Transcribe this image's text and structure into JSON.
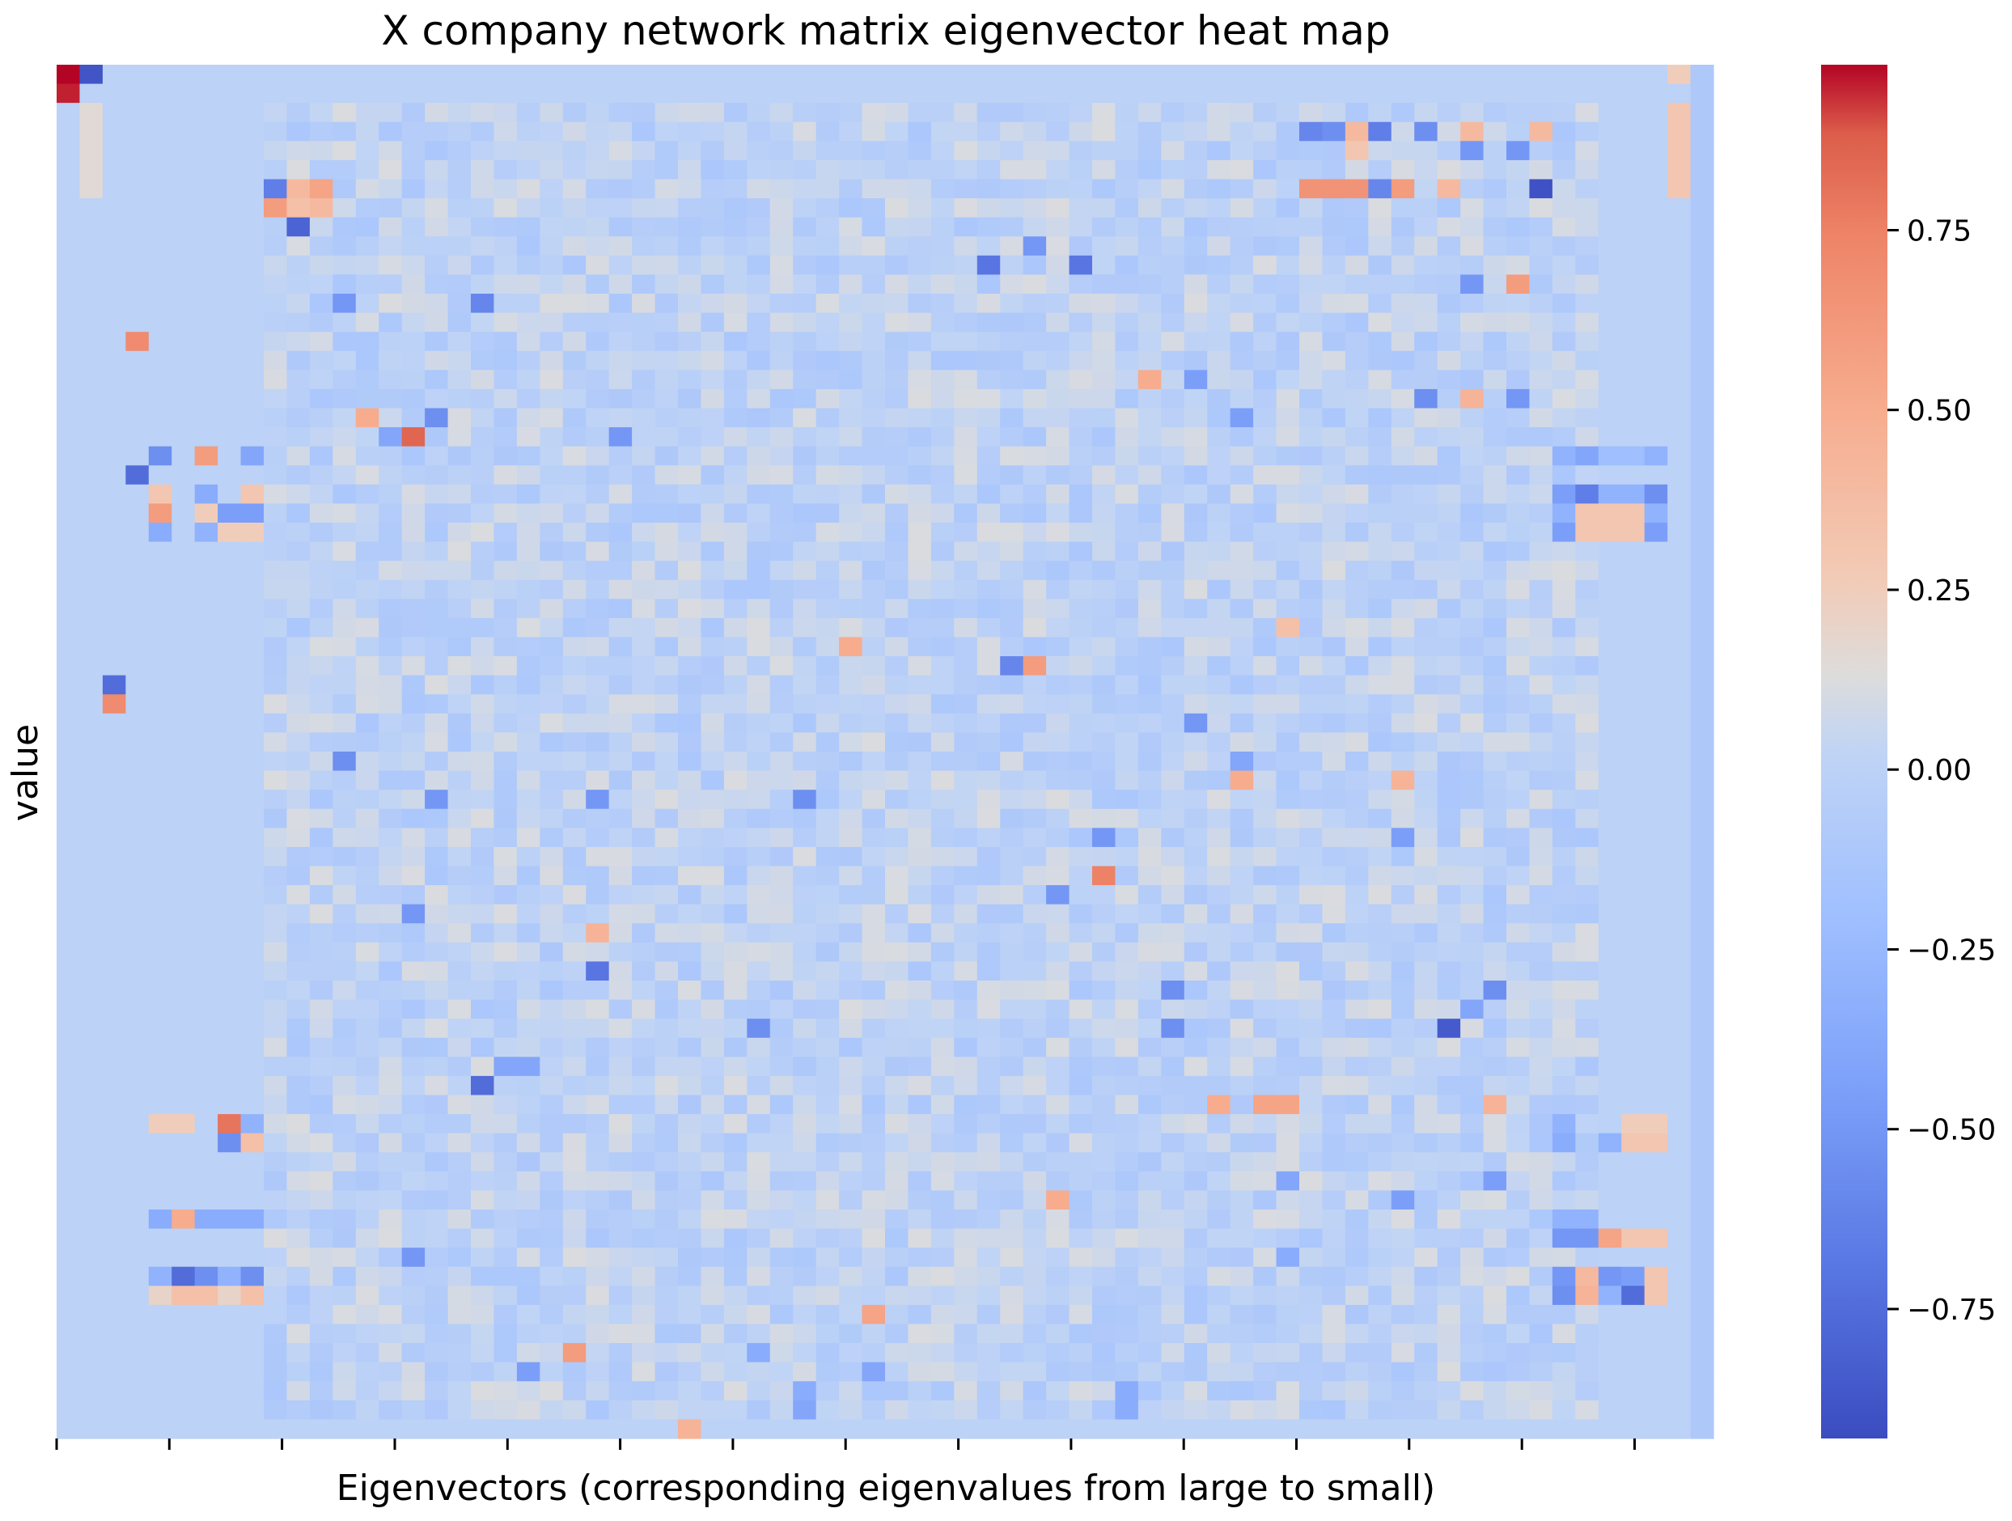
{
  "chart_data": {
    "type": "heatmap",
    "title": "X company network matrix eigenvector heat map",
    "xlabel": "Eigenvectors (corresponding eigenvalues from large to small)",
    "ylabel": "value",
    "n_rows": 72,
    "n_cols": 72,
    "colormap": "coolwarm",
    "vmin": -0.93,
    "vmax": 0.98,
    "background_value": 0.0,
    "colorbar_ticks": [
      0.75,
      0.5,
      0.25,
      0.0,
      -0.25,
      -0.5,
      -0.75
    ],
    "colorbar_tick_labels": [
      "0.75",
      "0.50",
      "0.25",
      "0.00",
      "−0.25",
      "−0.50",
      "−0.75"
    ],
    "x_tick_count": 15,
    "x_tick_labels_visible": false,
    "y_tick_labels_visible": false,
    "noise_region": {
      "rows": [
        2,
        70
      ],
      "cols": [
        9,
        66
      ],
      "amplitude": 0.12
    },
    "cells": [
      {
        "r": 0,
        "c": 0,
        "v": 0.98
      },
      {
        "r": 0,
        "c": 1,
        "v": -0.88
      },
      {
        "r": 1,
        "c": 0,
        "v": 0.95
      },
      {
        "r": 0,
        "c": 70,
        "v": 0.25
      },
      {
        "r": 1,
        "c": 70,
        "v": 0.0
      },
      {
        "r": 2,
        "c": 70,
        "v": 0.3
      },
      {
        "r": 3,
        "c": 70,
        "v": 0.3
      },
      {
        "r": 4,
        "c": 70,
        "v": 0.3
      },
      {
        "r": 5,
        "c": 70,
        "v": 0.3
      },
      {
        "r": 6,
        "c": 70,
        "v": 0.3
      },
      {
        "r": 2,
        "c": 1,
        "v": 0.15
      },
      {
        "r": 3,
        "c": 1,
        "v": 0.15
      },
      {
        "r": 4,
        "c": 1,
        "v": 0.15
      },
      {
        "r": 5,
        "c": 1,
        "v": 0.15
      },
      {
        "r": 6,
        "c": 1,
        "v": 0.15
      },
      {
        "r": 6,
        "c": 9,
        "v": -0.65
      },
      {
        "r": 6,
        "c": 10,
        "v": 0.4
      },
      {
        "r": 6,
        "c": 11,
        "v": 0.55
      },
      {
        "r": 7,
        "c": 9,
        "v": 0.6
      },
      {
        "r": 7,
        "c": 10,
        "v": 0.35
      },
      {
        "r": 7,
        "c": 11,
        "v": 0.4
      },
      {
        "r": 8,
        "c": 10,
        "v": -0.8
      },
      {
        "r": 6,
        "c": 54,
        "v": 0.65
      },
      {
        "r": 6,
        "c": 55,
        "v": 0.65
      },
      {
        "r": 6,
        "c": 56,
        "v": 0.65
      },
      {
        "r": 6,
        "c": 57,
        "v": -0.6
      },
      {
        "r": 6,
        "c": 58,
        "v": 0.6
      },
      {
        "r": 6,
        "c": 60,
        "v": 0.4
      },
      {
        "r": 6,
        "c": 64,
        "v": -0.9
      },
      {
        "r": 3,
        "c": 54,
        "v": -0.6
      },
      {
        "r": 3,
        "c": 55,
        "v": -0.55
      },
      {
        "r": 3,
        "c": 56,
        "v": 0.4
      },
      {
        "r": 3,
        "c": 57,
        "v": -0.65
      },
      {
        "r": 3,
        "c": 59,
        "v": -0.55
      },
      {
        "r": 3,
        "c": 61,
        "v": 0.4
      },
      {
        "r": 3,
        "c": 64,
        "v": 0.4
      },
      {
        "r": 4,
        "c": 56,
        "v": 0.3
      },
      {
        "r": 4,
        "c": 61,
        "v": -0.5
      },
      {
        "r": 4,
        "c": 63,
        "v": -0.5
      },
      {
        "r": 10,
        "c": 40,
        "v": -0.7
      },
      {
        "r": 10,
        "c": 44,
        "v": -0.7
      },
      {
        "r": 9,
        "c": 42,
        "v": -0.5
      },
      {
        "r": 11,
        "c": 61,
        "v": -0.5
      },
      {
        "r": 11,
        "c": 63,
        "v": 0.6
      },
      {
        "r": 12,
        "c": 12,
        "v": -0.5
      },
      {
        "r": 12,
        "c": 18,
        "v": -0.6
      },
      {
        "r": 14,
        "c": 3,
        "v": 0.7
      },
      {
        "r": 16,
        "c": 47,
        "v": 0.5
      },
      {
        "r": 16,
        "c": 49,
        "v": -0.45
      },
      {
        "r": 17,
        "c": 59,
        "v": -0.55
      },
      {
        "r": 17,
        "c": 61,
        "v": 0.45
      },
      {
        "r": 17,
        "c": 63,
        "v": -0.5
      },
      {
        "r": 18,
        "c": 13,
        "v": 0.5
      },
      {
        "r": 18,
        "c": 16,
        "v": -0.55
      },
      {
        "r": 18,
        "c": 51,
        "v": -0.45
      },
      {
        "r": 19,
        "c": 14,
        "v": -0.4
      },
      {
        "r": 19,
        "c": 15,
        "v": 0.85
      },
      {
        "r": 19,
        "c": 24,
        "v": -0.5
      },
      {
        "r": 20,
        "c": 4,
        "v": -0.55
      },
      {
        "r": 20,
        "c": 6,
        "v": 0.6
      },
      {
        "r": 20,
        "c": 8,
        "v": -0.4
      },
      {
        "r": 21,
        "c": 3,
        "v": -0.75
      },
      {
        "r": 22,
        "c": 4,
        "v": 0.3
      },
      {
        "r": 22,
        "c": 6,
        "v": -0.35
      },
      {
        "r": 22,
        "c": 8,
        "v": 0.3
      },
      {
        "r": 23,
        "c": 4,
        "v": 0.6
      },
      {
        "r": 23,
        "c": 6,
        "v": 0.25
      },
      {
        "r": 23,
        "c": 7,
        "v": -0.45
      },
      {
        "r": 23,
        "c": 8,
        "v": -0.45
      },
      {
        "r": 24,
        "c": 4,
        "v": -0.35
      },
      {
        "r": 24,
        "c": 6,
        "v": -0.3
      },
      {
        "r": 24,
        "c": 7,
        "v": 0.25
      },
      {
        "r": 24,
        "c": 8,
        "v": 0.25
      },
      {
        "r": 20,
        "c": 65,
        "v": -0.3
      },
      {
        "r": 20,
        "c": 66,
        "v": -0.4
      },
      {
        "r": 20,
        "c": 67,
        "v": -0.2
      },
      {
        "r": 20,
        "c": 68,
        "v": -0.2
      },
      {
        "r": 20,
        "c": 69,
        "v": -0.3
      },
      {
        "r": 22,
        "c": 65,
        "v": -0.45
      },
      {
        "r": 22,
        "c": 66,
        "v": -0.65
      },
      {
        "r": 22,
        "c": 67,
        "v": -0.3
      },
      {
        "r": 22,
        "c": 68,
        "v": -0.3
      },
      {
        "r": 22,
        "c": 69,
        "v": -0.55
      },
      {
        "r": 23,
        "c": 65,
        "v": -0.3
      },
      {
        "r": 23,
        "c": 66,
        "v": 0.3
      },
      {
        "r": 23,
        "c": 67,
        "v": 0.3
      },
      {
        "r": 23,
        "c": 68,
        "v": 0.3
      },
      {
        "r": 23,
        "c": 69,
        "v": -0.3
      },
      {
        "r": 24,
        "c": 65,
        "v": -0.45
      },
      {
        "r": 24,
        "c": 66,
        "v": 0.3
      },
      {
        "r": 24,
        "c": 67,
        "v": 0.3
      },
      {
        "r": 24,
        "c": 68,
        "v": 0.3
      },
      {
        "r": 24,
        "c": 69,
        "v": -0.45
      },
      {
        "r": 29,
        "c": 53,
        "v": 0.35
      },
      {
        "r": 30,
        "c": 34,
        "v": 0.5
      },
      {
        "r": 31,
        "c": 41,
        "v": -0.6
      },
      {
        "r": 31,
        "c": 42,
        "v": 0.6
      },
      {
        "r": 32,
        "c": 2,
        "v": -0.75
      },
      {
        "r": 33,
        "c": 2,
        "v": 0.7
      },
      {
        "r": 34,
        "c": 49,
        "v": -0.5
      },
      {
        "r": 36,
        "c": 12,
        "v": -0.55
      },
      {
        "r": 36,
        "c": 51,
        "v": -0.4
      },
      {
        "r": 37,
        "c": 51,
        "v": 0.5
      },
      {
        "r": 37,
        "c": 58,
        "v": 0.45
      },
      {
        "r": 38,
        "c": 16,
        "v": -0.5
      },
      {
        "r": 38,
        "c": 23,
        "v": -0.5
      },
      {
        "r": 38,
        "c": 32,
        "v": -0.55
      },
      {
        "r": 40,
        "c": 45,
        "v": -0.5
      },
      {
        "r": 40,
        "c": 58,
        "v": -0.45
      },
      {
        "r": 42,
        "c": 45,
        "v": 0.75
      },
      {
        "r": 43,
        "c": 43,
        "v": -0.5
      },
      {
        "r": 44,
        "c": 15,
        "v": -0.5
      },
      {
        "r": 45,
        "c": 23,
        "v": 0.45
      },
      {
        "r": 47,
        "c": 23,
        "v": -0.7
      },
      {
        "r": 48,
        "c": 48,
        "v": -0.55
      },
      {
        "r": 48,
        "c": 62,
        "v": -0.55
      },
      {
        "r": 49,
        "c": 61,
        "v": -0.4
      },
      {
        "r": 50,
        "c": 30,
        "v": -0.55
      },
      {
        "r": 50,
        "c": 48,
        "v": -0.55
      },
      {
        "r": 50,
        "c": 60,
        "v": -0.85
      },
      {
        "r": 52,
        "c": 19,
        "v": -0.4
      },
      {
        "r": 52,
        "c": 20,
        "v": -0.4
      },
      {
        "r": 53,
        "c": 18,
        "v": -0.75
      },
      {
        "r": 54,
        "c": 50,
        "v": 0.5
      },
      {
        "r": 54,
        "c": 52,
        "v": 0.55
      },
      {
        "r": 54,
        "c": 53,
        "v": 0.55
      },
      {
        "r": 54,
        "c": 62,
        "v": 0.45
      },
      {
        "r": 55,
        "c": 4,
        "v": 0.25
      },
      {
        "r": 55,
        "c": 5,
        "v": 0.25
      },
      {
        "r": 55,
        "c": 7,
        "v": 0.8
      },
      {
        "r": 55,
        "c": 8,
        "v": -0.3
      },
      {
        "r": 56,
        "c": 7,
        "v": -0.55
      },
      {
        "r": 56,
        "c": 8,
        "v": 0.35
      },
      {
        "r": 55,
        "c": 65,
        "v": -0.3
      },
      {
        "r": 55,
        "c": 68,
        "v": 0.25
      },
      {
        "r": 55,
        "c": 69,
        "v": 0.25
      },
      {
        "r": 56,
        "c": 65,
        "v": -0.35
      },
      {
        "r": 56,
        "c": 67,
        "v": -0.3
      },
      {
        "r": 56,
        "c": 68,
        "v": 0.3
      },
      {
        "r": 56,
        "c": 69,
        "v": 0.3
      },
      {
        "r": 58,
        "c": 62,
        "v": -0.45
      },
      {
        "r": 58,
        "c": 53,
        "v": -0.4
      },
      {
        "r": 59,
        "c": 43,
        "v": 0.5
      },
      {
        "r": 59,
        "c": 58,
        "v": -0.45
      },
      {
        "r": 60,
        "c": 4,
        "v": -0.35
      },
      {
        "r": 60,
        "c": 5,
        "v": 0.5
      },
      {
        "r": 60,
        "c": 6,
        "v": -0.35
      },
      {
        "r": 60,
        "c": 7,
        "v": -0.35
      },
      {
        "r": 60,
        "c": 8,
        "v": -0.35
      },
      {
        "r": 61,
        "c": 65,
        "v": -0.5
      },
      {
        "r": 61,
        "c": 66,
        "v": -0.5
      },
      {
        "r": 61,
        "c": 67,
        "v": 0.55
      },
      {
        "r": 61,
        "c": 68,
        "v": 0.3
      },
      {
        "r": 61,
        "c": 69,
        "v": 0.3
      },
      {
        "r": 60,
        "c": 65,
        "v": -0.3
      },
      {
        "r": 60,
        "c": 66,
        "v": -0.3
      },
      {
        "r": 62,
        "c": 15,
        "v": -0.5
      },
      {
        "r": 62,
        "c": 53,
        "v": -0.35
      },
      {
        "r": 63,
        "c": 4,
        "v": -0.3
      },
      {
        "r": 63,
        "c": 5,
        "v": -0.75
      },
      {
        "r": 63,
        "c": 6,
        "v": -0.55
      },
      {
        "r": 63,
        "c": 7,
        "v": -0.3
      },
      {
        "r": 63,
        "c": 8,
        "v": -0.55
      },
      {
        "r": 64,
        "c": 4,
        "v": 0.2
      },
      {
        "r": 64,
        "c": 5,
        "v": 0.35
      },
      {
        "r": 64,
        "c": 6,
        "v": 0.35
      },
      {
        "r": 64,
        "c": 7,
        "v": 0.2
      },
      {
        "r": 64,
        "c": 8,
        "v": 0.35
      },
      {
        "r": 63,
        "c": 65,
        "v": -0.5
      },
      {
        "r": 63,
        "c": 66,
        "v": 0.4
      },
      {
        "r": 63,
        "c": 67,
        "v": -0.5
      },
      {
        "r": 63,
        "c": 68,
        "v": -0.45
      },
      {
        "r": 63,
        "c": 69,
        "v": 0.3
      },
      {
        "r": 64,
        "c": 65,
        "v": -0.55
      },
      {
        "r": 64,
        "c": 66,
        "v": 0.45
      },
      {
        "r": 64,
        "c": 67,
        "v": -0.3
      },
      {
        "r": 64,
        "c": 68,
        "v": -0.75
      },
      {
        "r": 64,
        "c": 69,
        "v": 0.3
      },
      {
        "r": 65,
        "c": 35,
        "v": 0.55
      },
      {
        "r": 67,
        "c": 22,
        "v": 0.6
      },
      {
        "r": 67,
        "c": 30,
        "v": -0.35
      },
      {
        "r": 68,
        "c": 20,
        "v": -0.45
      },
      {
        "r": 70,
        "c": 32,
        "v": -0.4
      },
      {
        "r": 71,
        "c": 27,
        "v": 0.45
      },
      {
        "r": 69,
        "c": 46,
        "v": -0.35
      },
      {
        "r": 70,
        "c": 46,
        "v": -0.35
      },
      {
        "r": 69,
        "c": 32,
        "v": -0.35
      },
      {
        "r": 68,
        "c": 35,
        "v": -0.4
      }
    ]
  }
}
